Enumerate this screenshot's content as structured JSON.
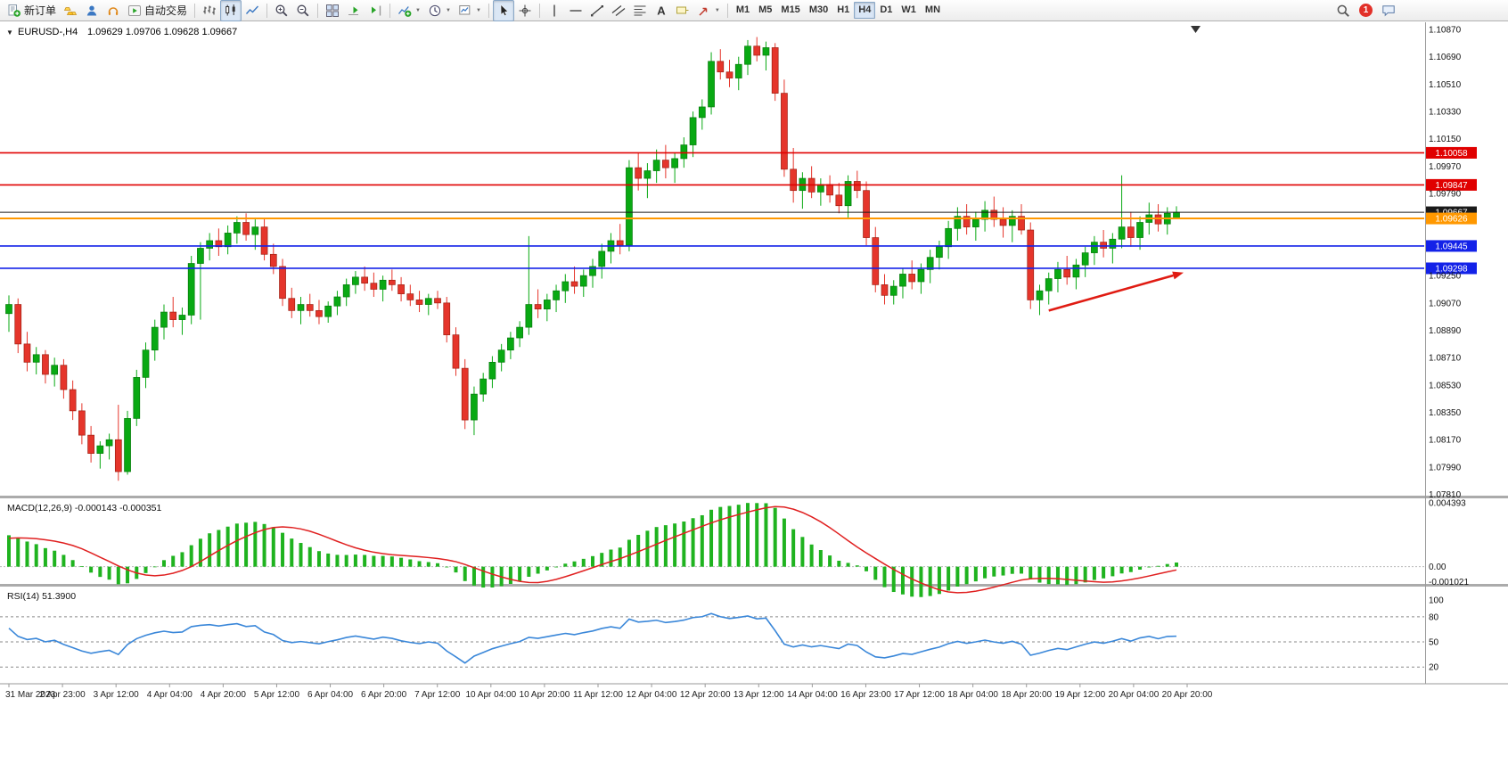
{
  "toolbar": {
    "groups": [
      {
        "items": [
          {
            "name": "new-order",
            "icon": "new-order",
            "label": "新订单"
          },
          {
            "name": "gold",
            "icon": "gold"
          },
          {
            "name": "community",
            "icon": "community"
          },
          {
            "name": "market",
            "icon": "market"
          },
          {
            "name": "autotrading",
            "icon": "autotrading",
            "label": "自动交易"
          }
        ]
      },
      {
        "items": [
          {
            "name": "bar-chart",
            "icon": "bars"
          },
          {
            "name": "candle-chart",
            "icon": "candles",
            "active": true
          },
          {
            "name": "line-chart",
            "icon": "linechart"
          }
        ]
      },
      {
        "items": [
          {
            "name": "zoom-in",
            "icon": "zoomin"
          },
          {
            "name": "zoom-out",
            "icon": "zoomout"
          }
        ]
      },
      {
        "items": [
          {
            "name": "tile-windows",
            "icon": "tile"
          },
          {
            "name": "auto-scroll",
            "icon": "autoscroll"
          },
          {
            "name": "chart-shift",
            "icon": "shift"
          }
        ]
      },
      {
        "items": [
          {
            "name": "indicators",
            "icon": "indicators",
            "caret": true
          },
          {
            "name": "periods",
            "icon": "periods",
            "caret": true
          },
          {
            "name": "templates",
            "icon": "template",
            "caret": true
          }
        ]
      },
      {
        "items": [
          {
            "name": "cursor",
            "icon": "cursor",
            "active": true
          },
          {
            "name": "crosshair",
            "icon": "crosshair"
          }
        ]
      },
      {
        "items": [
          {
            "name": "vertical-line",
            "icon": "vline"
          },
          {
            "name": "horizontal-line",
            "icon": "hline"
          },
          {
            "name": "trendline",
            "icon": "trend"
          },
          {
            "name": "channel",
            "icon": "channel"
          },
          {
            "name": "fibonacci",
            "icon": "fibo"
          },
          {
            "name": "text",
            "icon": "text"
          },
          {
            "name": "text-label",
            "icon": "label"
          },
          {
            "name": "arrows",
            "icon": "arrows",
            "caret": true
          }
        ]
      }
    ],
    "timeframes": [
      "M1",
      "M5",
      "M15",
      "M30",
      "H1",
      "H4",
      "D1",
      "W1",
      "MN"
    ],
    "active_timeframe": "H4",
    "right_items": [
      {
        "name": "search",
        "icon": "search"
      },
      {
        "name": "notifications",
        "badge": "1"
      },
      {
        "name": "chat",
        "icon": "chat"
      }
    ]
  },
  "legend": {
    "caret": "▼",
    "symbol": "EURUSD-,H4",
    "values": "1.09629 1.09706 1.09628 1.09667"
  },
  "chart_data": {
    "type": "candlestick",
    "symbol": "EURUSD-",
    "timeframe": "H4",
    "quote": {
      "open": "1.09629",
      "high": "1.09706",
      "low": "1.09628",
      "close": "1.09667"
    },
    "colors": {
      "up": "#09a913",
      "up_stroke": "#067a0b",
      "down": "#e5352b",
      "down_stroke": "#9e1f12",
      "macd_hist": "#1fb31f",
      "macd_signal": "#e02020",
      "rsi_line": "#3a87d9",
      "arrow": "#e01b12"
    },
    "candles": [
      [
        1.09,
        1.0912,
        1.0888,
        1.0906
      ],
      [
        1.0906,
        1.091,
        1.0874,
        1.088
      ],
      [
        1.088,
        1.0888,
        1.0862,
        1.0868
      ],
      [
        1.0868,
        1.0878,
        1.086,
        1.0873
      ],
      [
        1.0873,
        1.0876,
        1.0854,
        1.086
      ],
      [
        1.086,
        1.0871,
        1.0852,
        1.0866
      ],
      [
        1.0866,
        1.087,
        1.0844,
        1.085
      ],
      [
        1.085,
        1.0856,
        1.083,
        1.0836
      ],
      [
        1.0836,
        1.0841,
        1.0814,
        1.082
      ],
      [
        1.082,
        1.0826,
        1.0802,
        1.0808
      ],
      [
        1.0808,
        1.0816,
        1.0798,
        1.0813
      ],
      [
        1.0813,
        1.0821,
        1.0804,
        1.0817
      ],
      [
        1.0817,
        1.084,
        1.079,
        1.0796
      ],
      [
        1.0796,
        1.0836,
        1.0794,
        1.0831
      ],
      [
        1.0831,
        1.0863,
        1.0826,
        1.0858
      ],
      [
        1.0858,
        1.0881,
        1.0851,
        1.0876
      ],
      [
        1.0876,
        1.0896,
        1.0869,
        1.0891
      ],
      [
        1.0891,
        1.0906,
        1.0883,
        1.0901
      ],
      [
        1.0901,
        1.0911,
        1.0891,
        1.0896
      ],
      [
        1.0896,
        1.0904,
        1.0886,
        1.0899
      ],
      [
        1.0899,
        1.0938,
        1.0893,
        1.0933
      ],
      [
        1.0933,
        1.0947,
        1.0896,
        1.0943
      ],
      [
        1.0943,
        1.0953,
        1.0935,
        1.0948
      ],
      [
        1.0948,
        1.0956,
        1.0938,
        1.0944
      ],
      [
        1.0944,
        1.0958,
        1.0939,
        1.0953
      ],
      [
        1.0953,
        1.0964,
        1.0946,
        1.096
      ],
      [
        1.096,
        1.0966,
        1.0948,
        1.0952
      ],
      [
        1.0952,
        1.0962,
        1.0942,
        1.0957
      ],
      [
        1.0957,
        1.0963,
        1.0935,
        1.0939
      ],
      [
        1.0939,
        1.0946,
        1.0926,
        1.0931
      ],
      [
        1.0931,
        1.0936,
        1.0905,
        1.091
      ],
      [
        1.091,
        1.0917,
        1.0897,
        1.0902
      ],
      [
        1.0902,
        1.0911,
        1.0893,
        1.0906
      ],
      [
        1.0906,
        1.0913,
        1.0898,
        1.0902
      ],
      [
        1.0902,
        1.0909,
        1.0893,
        1.0898
      ],
      [
        1.0898,
        1.0908,
        1.0894,
        1.0905
      ],
      [
        1.0905,
        1.0915,
        1.0899,
        1.0911
      ],
      [
        1.0911,
        1.0923,
        1.0905,
        1.0919
      ],
      [
        1.0919,
        1.0928,
        1.0913,
        1.0924
      ],
      [
        1.0924,
        1.0931,
        1.0915,
        1.092
      ],
      [
        1.092,
        1.0927,
        1.0911,
        1.0916
      ],
      [
        1.0916,
        1.0925,
        1.0908,
        1.0922
      ],
      [
        1.0922,
        1.0929,
        1.0915,
        1.0919
      ],
      [
        1.0919,
        1.0924,
        1.0908,
        1.0913
      ],
      [
        1.0913,
        1.0919,
        1.0905,
        1.0909
      ],
      [
        1.0909,
        1.0915,
        1.0901,
        1.0906
      ],
      [
        1.0906,
        1.0913,
        1.0899,
        1.091
      ],
      [
        1.091,
        1.0915,
        1.0903,
        1.0907
      ],
      [
        1.0907,
        1.0911,
        1.0881,
        1.0886
      ],
      [
        1.0886,
        1.0891,
        1.0859,
        1.0864
      ],
      [
        1.0864,
        1.087,
        1.0824,
        1.083
      ],
      [
        1.083,
        1.0852,
        1.082,
        1.0847
      ],
      [
        1.0847,
        1.0861,
        1.0842,
        1.0857
      ],
      [
        1.0857,
        1.0872,
        1.0851,
        1.0868
      ],
      [
        1.0868,
        1.088,
        1.0862,
        1.0876
      ],
      [
        1.0876,
        1.0888,
        1.087,
        1.0884
      ],
      [
        1.0884,
        1.0895,
        1.0878,
        1.0891
      ],
      [
        1.0891,
        1.0951,
        1.0886,
        1.0906
      ],
      [
        1.0906,
        1.0916,
        1.0897,
        1.0903
      ],
      [
        1.0903,
        1.0913,
        1.0895,
        1.0909
      ],
      [
        1.0909,
        1.0919,
        1.0901,
        1.0915
      ],
      [
        1.0915,
        1.0926,
        1.0907,
        1.0921
      ],
      [
        1.0921,
        1.0931,
        1.0913,
        1.0918
      ],
      [
        1.0918,
        1.0929,
        1.0911,
        1.0925
      ],
      [
        1.0925,
        1.0936,
        1.0917,
        1.0931
      ],
      [
        1.0931,
        1.0946,
        1.0923,
        1.0941
      ],
      [
        1.0941,
        1.0953,
        1.0933,
        1.0948
      ],
      [
        1.0948,
        1.0959,
        1.0939,
        1.0945
      ],
      [
        1.0945,
        1.1001,
        1.0941,
        1.0996
      ],
      [
        1.0996,
        1.1006,
        1.0981,
        1.0989
      ],
      [
        1.0989,
        1.0999,
        1.0976,
        1.0994
      ],
      [
        1.0994,
        1.1008,
        1.0986,
        1.1001
      ],
      [
        1.1001,
        1.1011,
        1.0989,
        1.0996
      ],
      [
        1.0996,
        1.1006,
        1.0986,
        1.1002
      ],
      [
        1.1002,
        1.1016,
        1.0996,
        1.1011
      ],
      [
        1.1011,
        1.1033,
        1.1003,
        1.1029
      ],
      [
        1.1029,
        1.1041,
        1.1021,
        1.1036
      ],
      [
        1.1036,
        1.1072,
        1.1031,
        1.1066
      ],
      [
        1.1066,
        1.1074,
        1.1054,
        1.1059
      ],
      [
        1.1059,
        1.1067,
        1.1049,
        1.1055
      ],
      [
        1.1055,
        1.1069,
        1.1047,
        1.1064
      ],
      [
        1.1064,
        1.108,
        1.1057,
        1.1076
      ],
      [
        1.1076,
        1.1082,
        1.1066,
        1.107
      ],
      [
        1.107,
        1.1079,
        1.106,
        1.1075
      ],
      [
        1.1075,
        1.1078,
        1.104,
        1.1045
      ],
      [
        1.1045,
        1.1054,
        1.099,
        1.0995
      ],
      [
        1.0995,
        1.1009,
        1.0973,
        1.0981
      ],
      [
        1.0981,
        1.0993,
        1.0969,
        1.0989
      ],
      [
        1.0989,
        1.0997,
        1.0976,
        1.098
      ],
      [
        1.098,
        1.0989,
        1.0971,
        1.0985
      ],
      [
        1.0985,
        1.0991,
        1.0973,
        1.0978
      ],
      [
        1.0978,
        1.0986,
        1.0966,
        1.0971
      ],
      [
        1.0971,
        1.0991,
        1.0963,
        1.0987
      ],
      [
        1.0987,
        1.0994,
        1.0976,
        1.0981
      ],
      [
        1.0981,
        1.0987,
        1.0945,
        1.095
      ],
      [
        1.095,
        1.0957,
        1.0914,
        1.0919
      ],
      [
        1.0919,
        1.0926,
        1.0906,
        1.0912
      ],
      [
        1.0912,
        1.0922,
        1.0906,
        1.0918
      ],
      [
        1.0918,
        1.093,
        1.091,
        1.0926
      ],
      [
        1.0926,
        1.0935,
        1.0916,
        1.0921
      ],
      [
        1.0921,
        1.0933,
        1.0913,
        1.0929
      ],
      [
        1.0929,
        1.0942,
        1.092,
        1.0937
      ],
      [
        1.0937,
        1.0948,
        1.0929,
        1.0944
      ],
      [
        1.0944,
        1.0961,
        1.0936,
        1.0956
      ],
      [
        1.0956,
        1.097,
        1.0948,
        1.0964
      ],
      [
        1.0964,
        1.0972,
        1.0952,
        1.0957
      ],
      [
        1.0957,
        1.0967,
        1.0948,
        1.0962
      ],
      [
        1.0962,
        1.0974,
        1.0954,
        1.0968
      ],
      [
        1.0968,
        1.0977,
        1.0957,
        1.0962
      ],
      [
        1.0962,
        1.097,
        1.095,
        1.0958
      ],
      [
        1.0958,
        1.0968,
        1.0947,
        1.0964
      ],
      [
        1.0964,
        1.0972,
        1.0952,
        1.0955
      ],
      [
        1.0955,
        1.096,
        1.0903,
        1.0909
      ],
      [
        1.0909,
        1.0919,
        1.0899,
        1.0915
      ],
      [
        1.0915,
        1.0927,
        1.0906,
        1.0923
      ],
      [
        1.0923,
        1.0934,
        1.0914,
        1.0929
      ],
      [
        1.0929,
        1.0938,
        1.0919,
        1.0924
      ],
      [
        1.0924,
        1.0936,
        1.0916,
        1.0932
      ],
      [
        1.0932,
        1.0944,
        1.0924,
        1.094
      ],
      [
        1.094,
        1.0951,
        1.0932,
        1.0947
      ],
      [
        1.0947,
        1.0955,
        1.0937,
        1.0943
      ],
      [
        1.0943,
        1.0953,
        1.0933,
        1.0949
      ],
      [
        1.0949,
        1.0991,
        1.0943,
        1.0957
      ],
      [
        1.0957,
        1.0967,
        1.0944,
        1.095
      ],
      [
        1.095,
        1.0964,
        1.0942,
        1.096
      ],
      [
        1.096,
        1.0973,
        1.0952,
        1.0965
      ],
      [
        1.0965,
        1.0972,
        1.0954,
        1.0959
      ],
      [
        1.0959,
        1.097,
        1.0952,
        1.0966
      ],
      [
        1.09629,
        1.09706,
        1.09628,
        1.09667
      ]
    ],
    "price_axis": {
      "ylim": [
        1.07796,
        1.10917
      ],
      "ticks": [
        "1.10870",
        "1.10690",
        "1.10510",
        "1.10330",
        "1.10150",
        "1.09970",
        "1.09790",
        "1.09250",
        "1.09070",
        "1.08890",
        "1.08710",
        "1.08530",
        "1.08350",
        "1.08170",
        "1.07990",
        "1.07810"
      ]
    },
    "price_lines": [
      {
        "price": 1.10058,
        "label": "1.10058",
        "color": "#e00000",
        "width": 1.6
      },
      {
        "price": 1.09847,
        "label": "1.09847",
        "color": "#e00000",
        "width": 1.6
      },
      {
        "price": 1.09667,
        "label": "1.09667",
        "color": "#1a1a1a",
        "width": 1
      },
      {
        "price": 1.09626,
        "label": "1.09626",
        "color": "#ff9800",
        "width": 2
      },
      {
        "price": 1.09445,
        "label": "1.09445",
        "color": "#1322e8",
        "width": 1.6
      },
      {
        "price": 1.09298,
        "label": "1.09298",
        "color": "#1322e8",
        "width": 1.6
      }
    ],
    "macd": {
      "params": "12,26,9",
      "label_full": "MACD(12,26,9) -0.000143 -0.000351",
      "value": "-0.000143",
      "signal_value": "-0.000351",
      "scale_max": 0.004393,
      "ylim": [
        -0.00125,
        0.00465
      ],
      "axis_labels": [
        {
          "v": 0.004393,
          "t": "0.004393"
        },
        {
          "v": 0,
          "t": "0.00"
        },
        {
          "v": -0.001021,
          "t": "-0.001021"
        }
      ]
    },
    "rsi": {
      "period": 14,
      "label_full": "RSI(14) 51.3900",
      "value": "51.3900",
      "levels": [
        80,
        50,
        20
      ],
      "ylim": [
        0,
        115
      ],
      "axis_labels": [
        {
          "v": 100,
          "t": "100"
        },
        {
          "v": 80,
          "t": "80"
        },
        {
          "v": 50,
          "t": "50"
        },
        {
          "v": 20,
          "t": "20"
        }
      ]
    },
    "time_labels": [
      "31 Mar 2023",
      "2 Apr 23:00",
      "3 Apr 12:00",
      "4 Apr 04:00",
      "4 Apr 20:00",
      "5 Apr 12:00",
      "6 Apr 04:00",
      "6 Apr 20:00",
      "7 Apr 12:00",
      "10 Apr 04:00",
      "10 Apr 20:00",
      "11 Apr 12:00",
      "12 Apr 04:00",
      "12 Apr 20:00",
      "13 Apr 12:00",
      "14 Apr 04:00",
      "16 Apr 23:00",
      "17 Apr 12:00",
      "18 Apr 04:00",
      "18 Apr 20:00",
      "19 Apr 12:00",
      "20 Apr 04:00",
      "20 Apr 20:00"
    ],
    "annotations": [
      {
        "type": "arrow",
        "tail_bars_back": 14,
        "tail_price": 1.0902,
        "points_to_price": 1.0927,
        "color": "#e01b12"
      }
    ]
  }
}
